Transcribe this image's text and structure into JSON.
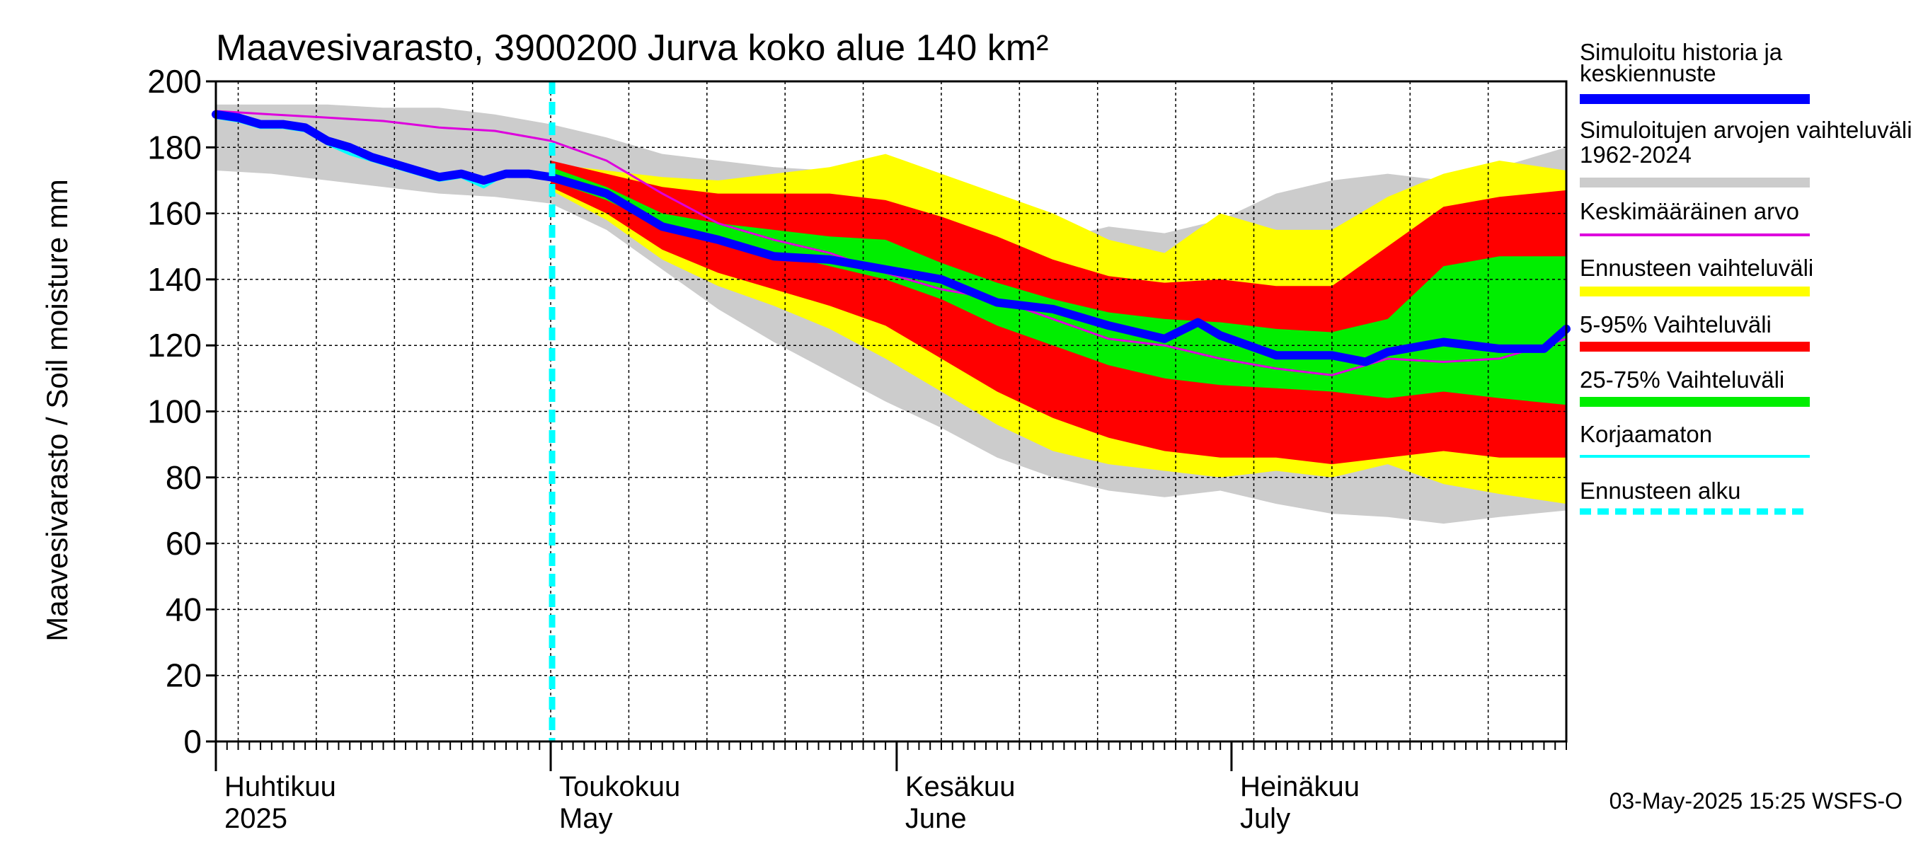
{
  "chart_data": {
    "type": "area",
    "title": "Maavesivarasto, 3900200 Jurva koko alue 140 km²",
    "ylabel": "Maavesivarasto / Soil moisture   mm",
    "xlabel": "",
    "ylim": [
      0,
      200
    ],
    "yticks": [
      0,
      20,
      40,
      60,
      80,
      100,
      120,
      140,
      160,
      180,
      200
    ],
    "x_start_day": 0,
    "x_end_day": 121,
    "x_unit": "days since 2025-04-01",
    "forecast_start_day": 30,
    "months": [
      {
        "fi": "Huhtikuu",
        "en": "2025",
        "day": 0
      },
      {
        "fi": "Toukokuu",
        "en": "May",
        "day": 30
      },
      {
        "fi": "Kesäkuu",
        "en": "June",
        "day": 61
      },
      {
        "fi": "Heinäkuu",
        "en": "July",
        "day": 91
      }
    ],
    "footer": "03-May-2025 15:25 WSFS-O",
    "legend": [
      {
        "label": "Simuloitu historia ja keskiennuste",
        "color": "#0000ff",
        "style": "thick"
      },
      {
        "label": "Simuloitujen arvojen vaihteluväli 1962-2024",
        "color": "#cccccc",
        "style": "thick"
      },
      {
        "label": "Keskimääräinen arvo",
        "color": "#dd00dd",
        "style": "thin"
      },
      {
        "label": "Ennusteen vaihteluväli",
        "color": "#ffff00",
        "style": "thick"
      },
      {
        "label": "5-95% Vaihteluväli",
        "color": "#ff0000",
        "style": "thick"
      },
      {
        "label": "25-75% Vaihteluväli",
        "color": "#00ee00",
        "style": "thick"
      },
      {
        "label": "Korjaamaton",
        "color": "#00ffff",
        "style": "thin"
      },
      {
        "label": "Ennusteen alku",
        "color": "#00ffff",
        "style": "dashed"
      }
    ],
    "series": [
      {
        "name": "Vaihteluväli 1962-2024 max",
        "color": "#cccccc",
        "x": [
          0,
          5,
          10,
          15,
          20,
          25,
          30,
          35,
          40,
          45,
          50,
          55,
          60,
          65,
          70,
          75,
          80,
          85,
          90,
          95,
          100,
          105,
          110,
          115,
          121
        ],
        "values": [
          193,
          193,
          193,
          192,
          192,
          190,
          187,
          183,
          178,
          176,
          174,
          173,
          168,
          162,
          155,
          152,
          156,
          154,
          158,
          166,
          170,
          172,
          170,
          174,
          180
        ]
      },
      {
        "name": "Vaihteluväli 1962-2024 min",
        "color": "#cccccc",
        "x": [
          0,
          5,
          10,
          15,
          20,
          25,
          30,
          35,
          40,
          45,
          50,
          55,
          60,
          65,
          70,
          75,
          80,
          85,
          90,
          95,
          100,
          105,
          110,
          115,
          121
        ],
        "values": [
          173,
          172,
          170,
          168,
          166,
          165,
          163,
          155,
          143,
          131,
          121,
          112,
          103,
          95,
          86,
          80,
          76,
          74,
          76,
          72,
          69,
          68,
          66,
          68,
          70
        ]
      },
      {
        "name": "Ennusteen vaihteluväli max",
        "color": "#ffff00",
        "x": [
          30,
          35,
          40,
          45,
          50,
          55,
          60,
          65,
          70,
          75,
          80,
          85,
          90,
          95,
          100,
          105,
          110,
          115,
          121
        ],
        "values": [
          175,
          173,
          171,
          170,
          172,
          174,
          178,
          172,
          166,
          160,
          152,
          148,
          160,
          155,
          155,
          165,
          172,
          176,
          173
        ]
      },
      {
        "name": "Ennusteen vaihteluväli min",
        "color": "#ffff00",
        "x": [
          30,
          35,
          40,
          45,
          50,
          55,
          60,
          65,
          70,
          75,
          80,
          85,
          90,
          95,
          100,
          105,
          110,
          115,
          121
        ],
        "values": [
          167,
          158,
          146,
          138,
          132,
          125,
          116,
          106,
          96,
          88,
          84,
          82,
          80,
          82,
          80,
          84,
          78,
          75,
          72
        ]
      },
      {
        "name": "5-95% max",
        "color": "#ff0000",
        "x": [
          30,
          35,
          40,
          45,
          50,
          55,
          60,
          65,
          70,
          75,
          80,
          85,
          90,
          95,
          100,
          105,
          110,
          115,
          121
        ],
        "values": [
          176,
          172,
          168,
          166,
          166,
          166,
          164,
          159,
          153,
          146,
          141,
          139,
          140,
          138,
          138,
          150,
          162,
          165,
          167
        ]
      },
      {
        "name": "5-95% min",
        "color": "#ff0000",
        "x": [
          30,
          35,
          40,
          45,
          50,
          55,
          60,
          65,
          70,
          75,
          80,
          85,
          90,
          95,
          100,
          105,
          110,
          115,
          121
        ],
        "values": [
          168,
          160,
          149,
          142,
          137,
          132,
          126,
          116,
          106,
          98,
          92,
          88,
          86,
          86,
          84,
          86,
          88,
          86,
          86
        ]
      },
      {
        "name": "25-75% max",
        "color": "#00ee00",
        "x": [
          30,
          35,
          40,
          45,
          50,
          55,
          60,
          65,
          70,
          75,
          80,
          85,
          90,
          95,
          100,
          105,
          110,
          115,
          121
        ],
        "values": [
          174,
          168,
          160,
          157,
          155,
          153,
          152,
          145,
          139,
          134,
          130,
          128,
          127,
          125,
          124,
          128,
          144,
          147,
          147
        ]
      },
      {
        "name": "25-75% min",
        "color": "#00ee00",
        "x": [
          30,
          35,
          40,
          45,
          50,
          55,
          60,
          65,
          70,
          75,
          80,
          85,
          90,
          95,
          100,
          105,
          110,
          115,
          121
        ],
        "values": [
          170,
          164,
          156,
          152,
          148,
          144,
          140,
          134,
          126,
          120,
          114,
          110,
          108,
          107,
          106,
          104,
          106,
          104,
          102
        ]
      },
      {
        "name": "Keskimääräinen arvo",
        "color": "#dd00dd",
        "x": [
          0,
          5,
          10,
          15,
          20,
          25,
          30,
          35,
          40,
          45,
          50,
          55,
          60,
          65,
          70,
          75,
          80,
          85,
          90,
          95,
          100,
          105,
          110,
          115,
          121
        ],
        "values": [
          191,
          190,
          189,
          188,
          186,
          185,
          182,
          176,
          166,
          157,
          152,
          148,
          142,
          137,
          134,
          128,
          122,
          120,
          116,
          113,
          111,
          116,
          115,
          116,
          122
        ]
      },
      {
        "name": "Korjaamaton",
        "color": "#00ffff",
        "x": [
          0,
          2,
          4,
          6,
          8,
          10,
          12,
          14,
          16,
          18,
          20,
          22,
          24,
          26,
          28,
          30
        ],
        "values": [
          189,
          188,
          186,
          186,
          185,
          181,
          178,
          176,
          174,
          172,
          170,
          171,
          168,
          172,
          172,
          172
        ]
      },
      {
        "name": "Simuloitu historia ja keskiennuste",
        "color": "#0000ff",
        "x": [
          0,
          2,
          4,
          6,
          8,
          10,
          12,
          14,
          16,
          18,
          20,
          22,
          24,
          26,
          28,
          30,
          35,
          40,
          45,
          50,
          55,
          60,
          65,
          70,
          75,
          80,
          85,
          88,
          90,
          95,
          100,
          103,
          105,
          110,
          115,
          119,
          121
        ],
        "values": [
          190,
          189,
          187,
          187,
          186,
          182,
          180,
          177,
          175,
          173,
          171,
          172,
          170,
          172,
          172,
          171,
          166,
          156,
          152,
          147,
          146,
          143,
          140,
          133,
          131,
          126,
          122,
          127,
          123,
          117,
          117,
          115,
          118,
          121,
          119,
          119,
          125
        ]
      }
    ]
  }
}
